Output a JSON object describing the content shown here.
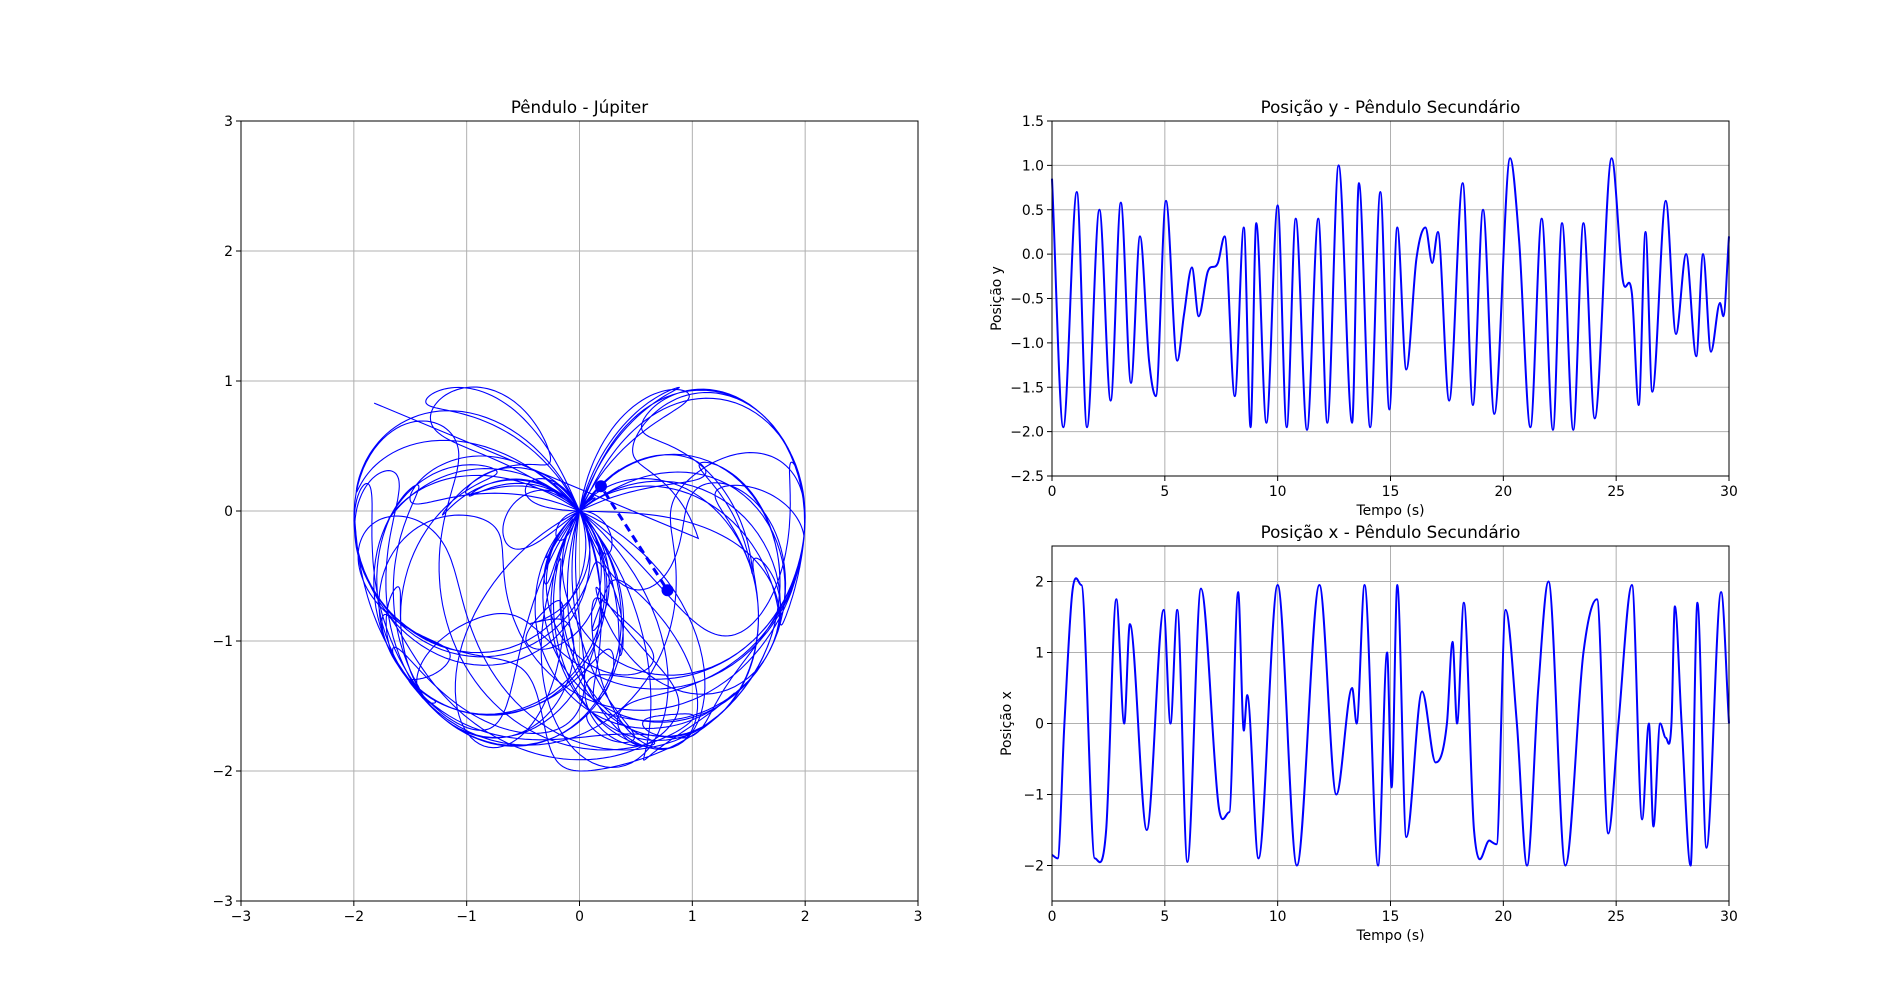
{
  "chart_data": [
    {
      "id": "pendulo",
      "type": "line",
      "title": "Pêndulo - Júpiter",
      "xlabel": "",
      "ylabel": "",
      "xlim": [
        -3,
        3
      ],
      "ylim": [
        -3,
        3
      ],
      "xticks": [
        -3,
        -2,
        -1,
        0,
        1,
        2,
        3
      ],
      "yticks": [
        -3,
        -2,
        -1,
        0,
        1,
        2,
        3
      ],
      "xtick_labels": [
        "−3",
        "−2",
        "−1",
        "0",
        "1",
        "2",
        "3"
      ],
      "ytick_labels": [
        "−3",
        "−2",
        "−1",
        "0",
        "1",
        "2",
        "3"
      ],
      "grid": true,
      "color": "#0000ff",
      "trajectory": "chaotic trace of the secondary bob, starting near (-1.82, 0.83), filling a region between x -2.0 and 2.0 and y -2.0 and 1.08",
      "pivot": [
        0,
        0
      ],
      "bob1": [
        0.19,
        0.19
      ],
      "bob2": [
        0.78,
        -0.61
      ]
    },
    {
      "id": "posy",
      "type": "line",
      "title": "Posição y - Pêndulo Secundário",
      "xlabel": "Tempo (s)",
      "ylabel": "Posição y",
      "xlim": [
        0,
        30
      ],
      "ylim": [
        -2.5,
        1.5
      ],
      "xticks": [
        0,
        5,
        10,
        15,
        20,
        25,
        30
      ],
      "yticks": [
        -2.5,
        -2.0,
        -1.5,
        -1.0,
        -0.5,
        0.0,
        0.5,
        1.0,
        1.5
      ],
      "xtick_labels": [
        "0",
        "5",
        "10",
        "15",
        "20",
        "25",
        "30"
      ],
      "ytick_labels": [
        "−2.5",
        "−2.0",
        "−1.5",
        "−1.0",
        "−0.5",
        "0.0",
        "0.5",
        "1.0",
        "1.5"
      ],
      "grid": true,
      "color": "#0000ff",
      "points": [
        [
          0,
          0.85
        ],
        [
          0.5,
          -1.95
        ],
        [
          1.1,
          0.7
        ],
        [
          1.55,
          -1.95
        ],
        [
          2.1,
          0.5
        ],
        [
          2.6,
          -1.65
        ],
        [
          3.05,
          0.58
        ],
        [
          3.5,
          -1.45
        ],
        [
          3.9,
          0.2
        ],
        [
          4.3,
          -1.2
        ],
        [
          4.6,
          -1.6
        ],
        [
          5.05,
          0.6
        ],
        [
          5.55,
          -1.2
        ],
        [
          5.85,
          -0.68
        ],
        [
          6.2,
          -0.15
        ],
        [
          6.5,
          -0.7
        ],
        [
          6.9,
          -0.2
        ],
        [
          7.35,
          -0.1
        ],
        [
          7.65,
          0.2
        ],
        [
          8.1,
          -1.6
        ],
        [
          8.5,
          0.3
        ],
        [
          8.8,
          -1.95
        ],
        [
          9.05,
          0.35
        ],
        [
          9.5,
          -1.9
        ],
        [
          10,
          0.55
        ],
        [
          10.4,
          -1.95
        ],
        [
          10.8,
          0.4
        ],
        [
          11.3,
          -1.98
        ],
        [
          11.8,
          0.4
        ],
        [
          12.2,
          -1.9
        ],
        [
          12.7,
          1.0
        ],
        [
          13.3,
          -1.9
        ],
        [
          13.6,
          0.8
        ],
        [
          14.1,
          -1.95
        ],
        [
          14.55,
          0.7
        ],
        [
          14.95,
          -1.75
        ],
        [
          15.3,
          0.3
        ],
        [
          15.7,
          -1.3
        ],
        [
          16.15,
          -0.05
        ],
        [
          16.55,
          0.3
        ],
        [
          16.85,
          -0.1
        ],
        [
          17.1,
          0.25
        ],
        [
          17.6,
          -1.65
        ],
        [
          18.2,
          0.8
        ],
        [
          18.65,
          -1.7
        ],
        [
          19.1,
          0.5
        ],
        [
          19.6,
          -1.8
        ],
        [
          20.3,
          1.08
        ],
        [
          20.7,
          0.15
        ],
        [
          21.2,
          -1.95
        ],
        [
          21.7,
          0.4
        ],
        [
          22.2,
          -1.98
        ],
        [
          22.6,
          0.35
        ],
        [
          23.1,
          -1.98
        ],
        [
          23.55,
          0.35
        ],
        [
          24.05,
          -1.85
        ],
        [
          24.8,
          1.08
        ],
        [
          25.3,
          -0.3
        ],
        [
          25.7,
          -0.45
        ],
        [
          26,
          -1.7
        ],
        [
          26.3,
          0.25
        ],
        [
          26.6,
          -1.55
        ],
        [
          27.2,
          0.6
        ],
        [
          27.65,
          -0.9
        ],
        [
          28.1,
          0.0
        ],
        [
          28.55,
          -1.15
        ],
        [
          28.85,
          0.0
        ],
        [
          29.2,
          -1.1
        ],
        [
          29.6,
          -0.55
        ],
        [
          29.75,
          -0.7
        ],
        [
          30,
          0.2
        ]
      ]
    },
    {
      "id": "posx",
      "type": "line",
      "title": "Posição x - Pêndulo Secundário",
      "xlabel": "Tempo (s)",
      "ylabel": "Posição x",
      "xlim": [
        0,
        30
      ],
      "ylim": [
        -2.5,
        2.5
      ],
      "xticks": [
        0,
        5,
        10,
        15,
        20,
        25,
        30
      ],
      "yticks": [
        -2,
        -1,
        0,
        1,
        2
      ],
      "xtick_labels": [
        "0",
        "5",
        "10",
        "15",
        "20",
        "25",
        "30"
      ],
      "ytick_labels": [
        "−2",
        "−1",
        "0",
        "1",
        "2"
      ],
      "grid": true,
      "color": "#0000ff",
      "points": [
        [
          0,
          -1.85
        ],
        [
          0.25,
          -1.9
        ],
        [
          0.55,
          0.0
        ],
        [
          0.9,
          1.85
        ],
        [
          1.3,
          1.95
        ],
        [
          1.9,
          -1.9
        ],
        [
          2.4,
          -1.5
        ],
        [
          2.85,
          1.75
        ],
        [
          3.2,
          0.0
        ],
        [
          3.45,
          1.4
        ],
        [
          4.2,
          -1.5
        ],
        [
          4.95,
          1.6
        ],
        [
          5.25,
          0.0
        ],
        [
          5.55,
          1.6
        ],
        [
          6.0,
          -1.95
        ],
        [
          6.6,
          1.9
        ],
        [
          7.4,
          -1.2
        ],
        [
          7.85,
          -1.25
        ],
        [
          8.25,
          1.85
        ],
        [
          8.5,
          -0.1
        ],
        [
          8.65,
          0.4
        ],
        [
          9.15,
          -1.9
        ],
        [
          10,
          1.95
        ],
        [
          10.85,
          -2.0
        ],
        [
          11.85,
          1.95
        ],
        [
          12.6,
          -1.0
        ],
        [
          13.3,
          0.5
        ],
        [
          13.5,
          0.0
        ],
        [
          13.85,
          1.95
        ],
        [
          14.45,
          -2.0
        ],
        [
          14.85,
          1.0
        ],
        [
          15.05,
          -0.9
        ],
        [
          15.3,
          1.95
        ],
        [
          15.7,
          -1.6
        ],
        [
          16.4,
          0.45
        ],
        [
          17.0,
          -0.55
        ],
        [
          17.5,
          0.0
        ],
        [
          17.75,
          1.15
        ],
        [
          17.95,
          0.0
        ],
        [
          18.25,
          1.7
        ],
        [
          18.7,
          -1.5
        ],
        [
          19.4,
          -1.65
        ],
        [
          19.7,
          -1.7
        ],
        [
          20.1,
          1.6
        ],
        [
          20.6,
          0.0
        ],
        [
          21.05,
          -2.0
        ],
        [
          21.55,
          0.5
        ],
        [
          22.0,
          2.0
        ],
        [
          22.75,
          -2.0
        ],
        [
          23.55,
          1.0
        ],
        [
          24.15,
          1.75
        ],
        [
          24.65,
          -1.55
        ],
        [
          25.1,
          0.0
        ],
        [
          25.7,
          1.95
        ],
        [
          26.15,
          -1.35
        ],
        [
          26.45,
          0.0
        ],
        [
          26.65,
          -1.45
        ],
        [
          26.95,
          0.0
        ],
        [
          27.2,
          -0.2
        ],
        [
          27.45,
          0.0
        ],
        [
          27.6,
          1.65
        ],
        [
          27.9,
          0.0
        ],
        [
          28.3,
          -2.0
        ],
        [
          28.6,
          1.7
        ],
        [
          29.0,
          -1.75
        ],
        [
          29.65,
          1.85
        ],
        [
          30.0,
          0.0
        ]
      ]
    }
  ]
}
